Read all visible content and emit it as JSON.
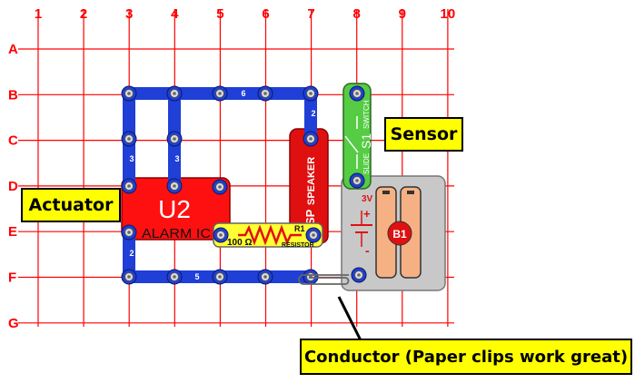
{
  "grid": {
    "columns": [
      "1",
      "2",
      "3",
      "4",
      "5",
      "6",
      "7",
      "8",
      "9",
      "10"
    ],
    "rows": [
      "A",
      "B",
      "C",
      "D",
      "E",
      "F",
      "G"
    ]
  },
  "parts": {
    "u2": {
      "label": "U2",
      "name": "ALARM IC"
    },
    "speaker": {
      "prefix": "SP",
      "name": "SPEAKER"
    },
    "resistor": {
      "ref": "R1",
      "value": "100 Ω",
      "name": "RESISTOR"
    },
    "switch": {
      "ref": "S1",
      "type": "SLIDE",
      "name": "SWITCH"
    },
    "battery": {
      "ref": "B1",
      "voltage": "3V",
      "plus": "+",
      "minus": "-"
    },
    "wires": {
      "top": "6",
      "bottom": "5",
      "left_upper": "3",
      "left_mid": "3",
      "left_lower": "2",
      "right_short": "2"
    }
  },
  "callouts": {
    "actuator": "Actuator",
    "sensor": "Sensor",
    "conductor": "Conductor (Paper clips work great)"
  },
  "colors": {
    "grid": "#ff0000",
    "wire": "#1f3fd6",
    "u2_body": "#ff1010",
    "speaker_body": "#e01010",
    "resistor_body": "#ffff33",
    "switch_body": "#55cc44",
    "battery_holder": "#c8c8c8",
    "battery_cell": "#f5b184",
    "callout": "#ffff00"
  }
}
